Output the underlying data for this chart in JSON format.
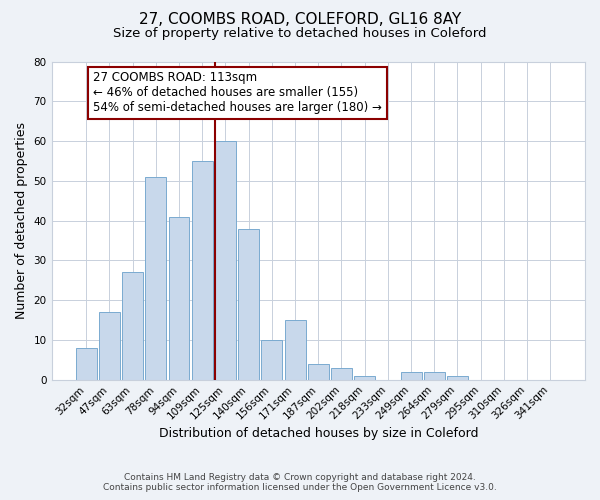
{
  "title": "27, COOMBS ROAD, COLEFORD, GL16 8AY",
  "subtitle": "Size of property relative to detached houses in Coleford",
  "xlabel": "Distribution of detached houses by size in Coleford",
  "ylabel": "Number of detached properties",
  "footer_line1": "Contains HM Land Registry data © Crown copyright and database right 2024.",
  "footer_line2": "Contains public sector information licensed under the Open Government Licence v3.0.",
  "bar_labels": [
    "32sqm",
    "47sqm",
    "63sqm",
    "78sqm",
    "94sqm",
    "109sqm",
    "125sqm",
    "140sqm",
    "156sqm",
    "171sqm",
    "187sqm",
    "202sqm",
    "218sqm",
    "233sqm",
    "249sqm",
    "264sqm",
    "279sqm",
    "295sqm",
    "310sqm",
    "326sqm",
    "341sqm"
  ],
  "bar_values": [
    8,
    17,
    27,
    51,
    41,
    55,
    60,
    38,
    10,
    15,
    4,
    3,
    1,
    0,
    2,
    2,
    1,
    0,
    0,
    0,
    0
  ],
  "bar_color": "#c8d8eb",
  "bar_edge_color": "#7aaad0",
  "vline_index": 6,
  "vline_color": "#8b0000",
  "annotation_title": "27 COOMBS ROAD: 113sqm",
  "annotation_line1": "← 46% of detached houses are smaller (155)",
  "annotation_line2": "54% of semi-detached houses are larger (180) →",
  "annotation_box_color": "#ffffff",
  "annotation_box_edge": "#8b0000",
  "ylim": [
    0,
    80
  ],
  "yticks": [
    0,
    10,
    20,
    30,
    40,
    50,
    60,
    70,
    80
  ],
  "background_color": "#eef2f7",
  "plot_background_color": "#ffffff",
  "grid_color": "#c8d0dc",
  "title_fontsize": 11,
  "subtitle_fontsize": 9.5,
  "axis_label_fontsize": 9,
  "tick_fontsize": 7.5,
  "annotation_fontsize": 8.5,
  "footer_fontsize": 6.5
}
